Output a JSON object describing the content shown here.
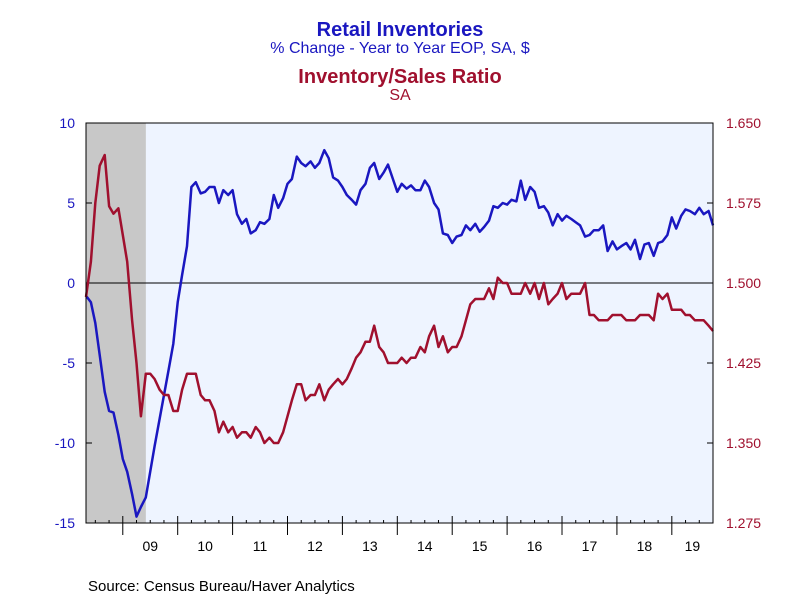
{
  "titles": {
    "series1_title": "Retail Inventories",
    "series1_subtitle": "% Change - Year to Year    EOP, SA, $",
    "series2_title": "Inventory/Sales Ratio",
    "series2_subtitle": "SA"
  },
  "source": "Source:  Census Bureau/Haver Analytics",
  "colors": {
    "series1": "#1a17c0",
    "series2": "#a0102e",
    "plot_bg": "#eef4ff",
    "recession": "#c8c8c8"
  },
  "chart_data": {
    "type": "line",
    "x_start": 2008.33,
    "x_end": 2019.75,
    "x_ticks": [
      {
        "label": "09",
        "year": 2009
      },
      {
        "label": "10",
        "year": 2010
      },
      {
        "label": "11",
        "year": 2011
      },
      {
        "label": "12",
        "year": 2012
      },
      {
        "label": "13",
        "year": 2013
      },
      {
        "label": "14",
        "year": 2014
      },
      {
        "label": "15",
        "year": 2015
      },
      {
        "label": "16",
        "year": 2016
      },
      {
        "label": "17",
        "year": 2017
      },
      {
        "label": "18",
        "year": 2018
      },
      {
        "label": "19",
        "year": 2019
      }
    ],
    "left_axis": {
      "min": -15,
      "max": 10,
      "ticks": [
        "10",
        "5",
        "0",
        "-5",
        "-10",
        "-15"
      ]
    },
    "right_axis": {
      "min": 1.275,
      "max": 1.65,
      "ticks": [
        "1.650",
        "1.575",
        "1.500",
        "1.425",
        "1.350",
        "1.275"
      ]
    },
    "recession": {
      "start": 2008.33,
      "end": 2009.42
    },
    "zero_line": 0,
    "series": [
      {
        "axis": "left",
        "points": [
          [
            2008.33,
            -0.8
          ],
          [
            2008.42,
            -1.2
          ],
          [
            2008.5,
            -2.5
          ],
          [
            2008.58,
            -4.5
          ],
          [
            2008.67,
            -6.8
          ],
          [
            2008.75,
            -8
          ],
          [
            2008.83,
            -8.1
          ],
          [
            2008.92,
            -9.5
          ],
          [
            2009,
            -11
          ],
          [
            2009.08,
            -11.8
          ],
          [
            2009.17,
            -13.2
          ],
          [
            2009.25,
            -14.6
          ],
          [
            2009.33,
            -14
          ],
          [
            2009.42,
            -13.4
          ],
          [
            2009.5,
            -11.8
          ],
          [
            2009.58,
            -10.2
          ],
          [
            2009.67,
            -8.5
          ],
          [
            2009.75,
            -7
          ],
          [
            2009.83,
            -5.5
          ],
          [
            2009.92,
            -3.8
          ],
          [
            2010,
            -1.2
          ],
          [
            2010.08,
            0.5
          ],
          [
            2010.17,
            2.3
          ],
          [
            2010.25,
            6
          ],
          [
            2010.33,
            6.3
          ],
          [
            2010.42,
            5.6
          ],
          [
            2010.5,
            5.7
          ],
          [
            2010.58,
            6
          ],
          [
            2010.67,
            6
          ],
          [
            2010.75,
            5
          ],
          [
            2010.83,
            5.8
          ],
          [
            2010.92,
            5.5
          ],
          [
            2011,
            5.8
          ],
          [
            2011.08,
            4.3
          ],
          [
            2011.17,
            3.7
          ],
          [
            2011.25,
            4
          ],
          [
            2011.33,
            3.1
          ],
          [
            2011.42,
            3.3
          ],
          [
            2011.5,
            3.8
          ],
          [
            2011.58,
            3.7
          ],
          [
            2011.67,
            4
          ],
          [
            2011.75,
            5.5
          ],
          [
            2011.83,
            4.7
          ],
          [
            2011.92,
            5.3
          ],
          [
            2012,
            6.2
          ],
          [
            2012.08,
            6.5
          ],
          [
            2012.17,
            7.9
          ],
          [
            2012.25,
            7.5
          ],
          [
            2012.33,
            7.3
          ],
          [
            2012.42,
            7.6
          ],
          [
            2012.5,
            7.2
          ],
          [
            2012.58,
            7.5
          ],
          [
            2012.67,
            8.3
          ],
          [
            2012.75,
            7.8
          ],
          [
            2012.83,
            6.6
          ],
          [
            2012.92,
            6.4
          ],
          [
            2013,
            6
          ],
          [
            2013.08,
            5.5
          ],
          [
            2013.17,
            5.2
          ],
          [
            2013.25,
            4.9
          ],
          [
            2013.33,
            5.8
          ],
          [
            2013.42,
            6.2
          ],
          [
            2013.5,
            7.2
          ],
          [
            2013.58,
            7.5
          ],
          [
            2013.67,
            6.5
          ],
          [
            2013.75,
            6.9
          ],
          [
            2013.83,
            7.4
          ],
          [
            2013.92,
            6.5
          ],
          [
            2014,
            5.7
          ],
          [
            2014.08,
            6.2
          ],
          [
            2014.17,
            5.9
          ],
          [
            2014.25,
            6.1
          ],
          [
            2014.33,
            5.8
          ],
          [
            2014.42,
            5.8
          ],
          [
            2014.5,
            6.4
          ],
          [
            2014.58,
            6
          ],
          [
            2014.67,
            5
          ],
          [
            2014.75,
            4.6
          ],
          [
            2014.83,
            3.1
          ],
          [
            2014.92,
            3
          ],
          [
            2015,
            2.5
          ],
          [
            2015.08,
            2.9
          ],
          [
            2015.17,
            3
          ],
          [
            2015.25,
            3.6
          ],
          [
            2015.33,
            3.3
          ],
          [
            2015.42,
            3.7
          ],
          [
            2015.5,
            3.2
          ],
          [
            2015.58,
            3.5
          ],
          [
            2015.67,
            3.9
          ],
          [
            2015.75,
            4.8
          ],
          [
            2015.83,
            4.7
          ],
          [
            2015.92,
            5
          ],
          [
            2016,
            4.9
          ],
          [
            2016.08,
            5.2
          ],
          [
            2016.17,
            5.1
          ],
          [
            2016.25,
            6.4
          ],
          [
            2016.33,
            5.2
          ],
          [
            2016.42,
            6
          ],
          [
            2016.5,
            5.7
          ],
          [
            2016.58,
            4.7
          ],
          [
            2016.67,
            4.8
          ],
          [
            2016.75,
            4.4
          ],
          [
            2016.83,
            3.6
          ],
          [
            2016.92,
            4.3
          ],
          [
            2017,
            3.9
          ],
          [
            2017.08,
            4.2
          ],
          [
            2017.17,
            4
          ],
          [
            2017.25,
            3.8
          ],
          [
            2017.33,
            3.6
          ],
          [
            2017.42,
            2.9
          ],
          [
            2017.5,
            3
          ],
          [
            2017.58,
            3.3
          ],
          [
            2017.67,
            3.3
          ],
          [
            2017.75,
            3.6
          ],
          [
            2017.83,
            2
          ],
          [
            2017.92,
            2.6
          ],
          [
            2018,
            2.1
          ],
          [
            2018.08,
            2.3
          ],
          [
            2018.17,
            2.5
          ],
          [
            2018.25,
            2.1
          ],
          [
            2018.33,
            2.7
          ],
          [
            2018.42,
            1.5
          ],
          [
            2018.5,
            2.4
          ],
          [
            2018.58,
            2.5
          ],
          [
            2018.67,
            1.7
          ],
          [
            2018.75,
            2.5
          ],
          [
            2018.83,
            2.6
          ],
          [
            2018.92,
            3
          ],
          [
            2019,
            4.1
          ],
          [
            2019.08,
            3.4
          ],
          [
            2019.17,
            4.2
          ],
          [
            2019.25,
            4.6
          ],
          [
            2019.33,
            4.5
          ],
          [
            2019.42,
            4.3
          ],
          [
            2019.5,
            4.7
          ],
          [
            2019.58,
            4.3
          ],
          [
            2019.67,
            4.5
          ],
          [
            2019.75,
            3.6
          ]
        ]
      },
      {
        "axis": "right",
        "points": [
          [
            2008.33,
            1.487
          ],
          [
            2008.42,
            1.52
          ],
          [
            2008.5,
            1.575
          ],
          [
            2008.58,
            1.61
          ],
          [
            2008.67,
            1.62
          ],
          [
            2008.75,
            1.572
          ],
          [
            2008.83,
            1.565
          ],
          [
            2008.92,
            1.57
          ],
          [
            2009,
            1.545
          ],
          [
            2009.08,
            1.52
          ],
          [
            2009.17,
            1.465
          ],
          [
            2009.25,
            1.425
          ],
          [
            2009.33,
            1.375
          ],
          [
            2009.42,
            1.415
          ],
          [
            2009.5,
            1.415
          ],
          [
            2009.58,
            1.41
          ],
          [
            2009.67,
            1.4
          ],
          [
            2009.75,
            1.395
          ],
          [
            2009.83,
            1.395
          ],
          [
            2009.92,
            1.38
          ],
          [
            2010,
            1.38
          ],
          [
            2010.08,
            1.4
          ],
          [
            2010.17,
            1.415
          ],
          [
            2010.25,
            1.415
          ],
          [
            2010.33,
            1.415
          ],
          [
            2010.42,
            1.395
          ],
          [
            2010.5,
            1.39
          ],
          [
            2010.58,
            1.39
          ],
          [
            2010.67,
            1.38
          ],
          [
            2010.75,
            1.36
          ],
          [
            2010.83,
            1.37
          ],
          [
            2010.92,
            1.36
          ],
          [
            2011,
            1.365
          ],
          [
            2011.08,
            1.355
          ],
          [
            2011.17,
            1.36
          ],
          [
            2011.25,
            1.36
          ],
          [
            2011.33,
            1.355
          ],
          [
            2011.42,
            1.365
          ],
          [
            2011.5,
            1.36
          ],
          [
            2011.58,
            1.35
          ],
          [
            2011.67,
            1.355
          ],
          [
            2011.75,
            1.35
          ],
          [
            2011.83,
            1.35
          ],
          [
            2011.92,
            1.36
          ],
          [
            2012,
            1.375
          ],
          [
            2012.08,
            1.39
          ],
          [
            2012.17,
            1.405
          ],
          [
            2012.25,
            1.405
          ],
          [
            2012.33,
            1.39
          ],
          [
            2012.42,
            1.395
          ],
          [
            2012.5,
            1.395
          ],
          [
            2012.58,
            1.405
          ],
          [
            2012.67,
            1.39
          ],
          [
            2012.75,
            1.4
          ],
          [
            2012.83,
            1.405
          ],
          [
            2012.92,
            1.41
          ],
          [
            2013,
            1.405
          ],
          [
            2013.08,
            1.41
          ],
          [
            2013.17,
            1.42
          ],
          [
            2013.25,
            1.43
          ],
          [
            2013.33,
            1.435
          ],
          [
            2013.42,
            1.445
          ],
          [
            2013.5,
            1.445
          ],
          [
            2013.58,
            1.46
          ],
          [
            2013.67,
            1.44
          ],
          [
            2013.75,
            1.435
          ],
          [
            2013.83,
            1.425
          ],
          [
            2013.92,
            1.425
          ],
          [
            2014,
            1.425
          ],
          [
            2014.08,
            1.43
          ],
          [
            2014.17,
            1.425
          ],
          [
            2014.25,
            1.43
          ],
          [
            2014.33,
            1.43
          ],
          [
            2014.42,
            1.44
          ],
          [
            2014.5,
            1.435
          ],
          [
            2014.58,
            1.45
          ],
          [
            2014.67,
            1.46
          ],
          [
            2014.75,
            1.44
          ],
          [
            2014.83,
            1.45
          ],
          [
            2014.92,
            1.435
          ],
          [
            2015,
            1.44
          ],
          [
            2015.08,
            1.44
          ],
          [
            2015.17,
            1.45
          ],
          [
            2015.25,
            1.465
          ],
          [
            2015.33,
            1.48
          ],
          [
            2015.42,
            1.485
          ],
          [
            2015.5,
            1.485
          ],
          [
            2015.58,
            1.485
          ],
          [
            2015.67,
            1.495
          ],
          [
            2015.75,
            1.485
          ],
          [
            2015.83,
            1.505
          ],
          [
            2015.92,
            1.5
          ],
          [
            2016,
            1.5
          ],
          [
            2016.08,
            1.49
          ],
          [
            2016.17,
            1.49
          ],
          [
            2016.25,
            1.49
          ],
          [
            2016.33,
            1.5
          ],
          [
            2016.42,
            1.49
          ],
          [
            2016.5,
            1.5
          ],
          [
            2016.58,
            1.485
          ],
          [
            2016.67,
            1.5
          ],
          [
            2016.75,
            1.48
          ],
          [
            2016.83,
            1.485
          ],
          [
            2016.92,
            1.49
          ],
          [
            2017,
            1.5
          ],
          [
            2017.08,
            1.485
          ],
          [
            2017.17,
            1.49
          ],
          [
            2017.25,
            1.49
          ],
          [
            2017.33,
            1.49
          ],
          [
            2017.42,
            1.5
          ],
          [
            2017.5,
            1.47
          ],
          [
            2017.58,
            1.47
          ],
          [
            2017.67,
            1.465
          ],
          [
            2017.75,
            1.465
          ],
          [
            2017.83,
            1.465
          ],
          [
            2017.92,
            1.47
          ],
          [
            2018,
            1.47
          ],
          [
            2018.08,
            1.47
          ],
          [
            2018.17,
            1.465
          ],
          [
            2018.25,
            1.465
          ],
          [
            2018.33,
            1.465
          ],
          [
            2018.42,
            1.47
          ],
          [
            2018.5,
            1.47
          ],
          [
            2018.58,
            1.47
          ],
          [
            2018.67,
            1.465
          ],
          [
            2018.75,
            1.49
          ],
          [
            2018.83,
            1.485
          ],
          [
            2018.92,
            1.49
          ],
          [
            2019,
            1.475
          ],
          [
            2019.08,
            1.475
          ],
          [
            2019.17,
            1.475
          ],
          [
            2019.25,
            1.47
          ],
          [
            2019.33,
            1.47
          ],
          [
            2019.42,
            1.465
          ],
          [
            2019.5,
            1.465
          ],
          [
            2019.58,
            1.465
          ],
          [
            2019.67,
            1.46
          ],
          [
            2019.75,
            1.455
          ]
        ]
      }
    ]
  }
}
